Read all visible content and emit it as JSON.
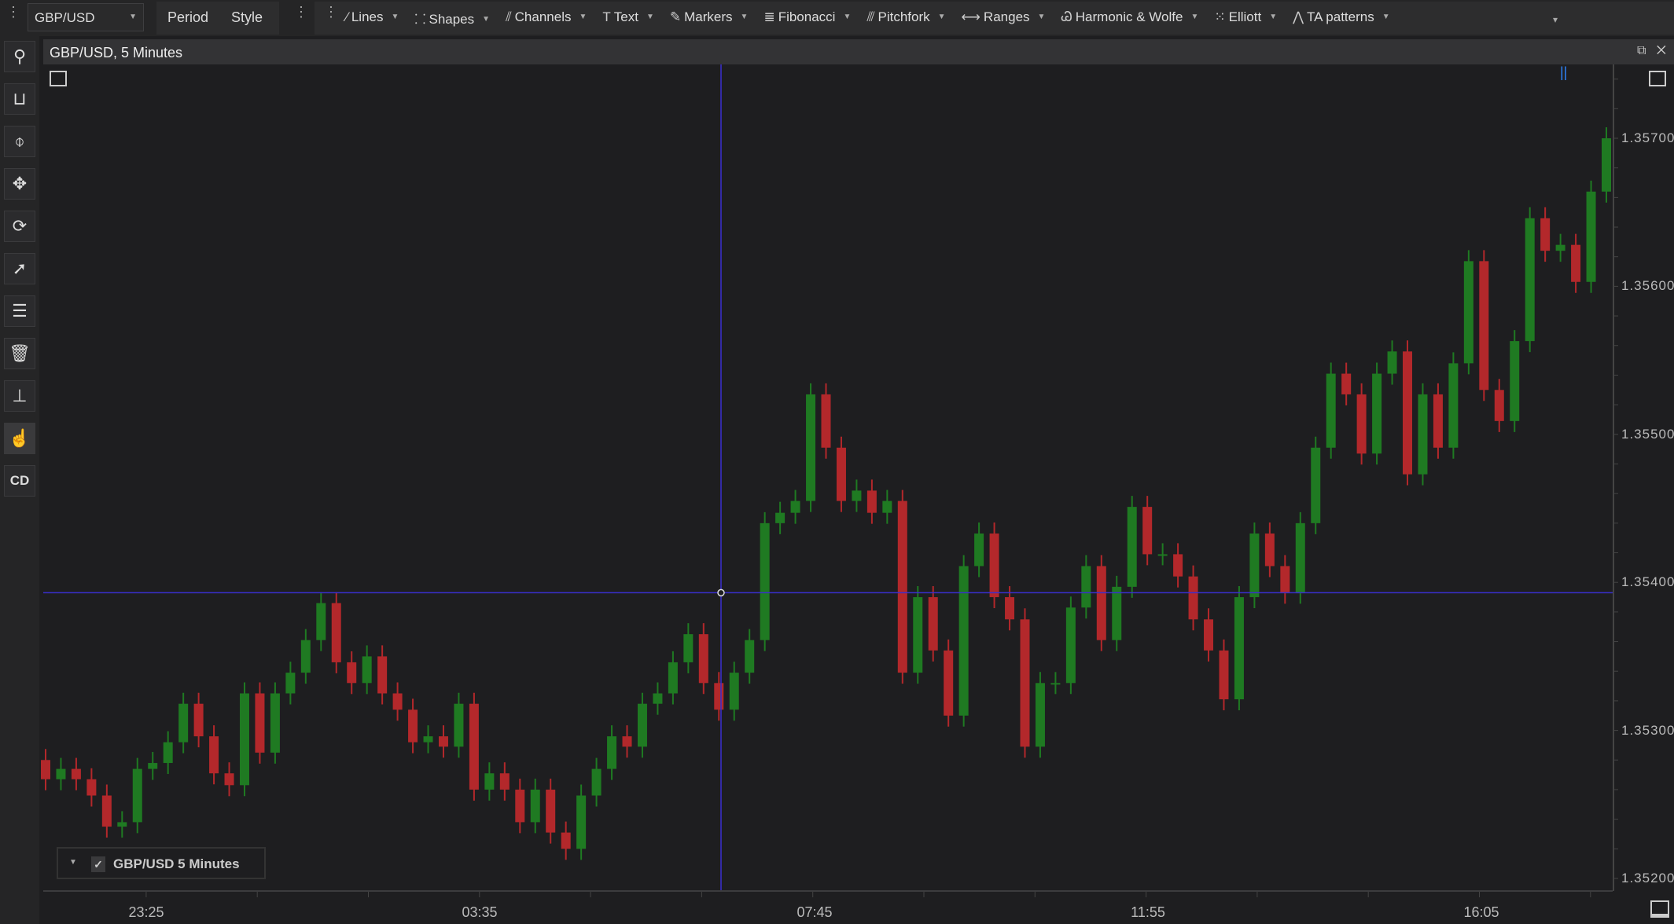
{
  "toolbar": {
    "symbol": "GBP/USD",
    "period_label": "Period",
    "style_label": "Style",
    "tools": [
      {
        "label": "Lines",
        "icon": "line-icon",
        "glyph": "⁄"
      },
      {
        "label": "Shapes",
        "icon": "shapes-icon",
        "glyph": "⸬"
      },
      {
        "label": "Channels",
        "icon": "channels-icon",
        "glyph": "⫽"
      },
      {
        "label": "Text",
        "icon": "text-icon",
        "glyph": "T"
      },
      {
        "label": "Markers",
        "icon": "marker-icon",
        "glyph": "✎"
      },
      {
        "label": "Fibonacci",
        "icon": "fibonacci-icon",
        "glyph": "≣"
      },
      {
        "label": "Pitchfork",
        "icon": "pitchfork-icon",
        "glyph": "⫻"
      },
      {
        "label": "Ranges",
        "icon": "ranges-icon",
        "glyph": "⟷"
      },
      {
        "label": "Harmonic & Wolfe",
        "icon": "harmonic-icon",
        "glyph": "Ꮚ"
      },
      {
        "label": "Elliott",
        "icon": "elliott-icon",
        "glyph": "⁙"
      },
      {
        "label": "TA patterns",
        "icon": "ta-patterns-icon",
        "glyph": "⋀"
      }
    ]
  },
  "sidebar": {
    "cd_label": "CD"
  },
  "chart_window": {
    "title": "GBP/USD, 5 Minutes",
    "legend_label": "GBP/USD 5 Minutes"
  },
  "colors": {
    "up": "#1f7a22",
    "down": "#b3282b",
    "crosshair": "#3a2fd0",
    "background": "#1e1e20"
  },
  "chart_data": {
    "type": "candlestick",
    "y_range": [
      1.3518,
      1.3575
    ],
    "y_ticks": [
      "1.35700",
      "1.35600",
      "1.35500",
      "1.35400",
      "1.35300",
      "1.35200"
    ],
    "x_tick_labels": [
      "23:25",
      "03:35",
      "07:45",
      "11:55",
      "16:05"
    ],
    "crosshair_price": 1.35393,
    "first_open": 1.3528,
    "close": [
      1.35267,
      1.35274,
      1.35267,
      1.35256,
      1.35235,
      1.35238,
      1.35274,
      1.35278,
      1.35292,
      1.35318,
      1.35296,
      1.35271,
      1.35263,
      1.35325,
      1.35285,
      1.35325,
      1.35339,
      1.35361,
      1.35386,
      1.35346,
      1.35332,
      1.3535,
      1.35325,
      1.35314,
      1.35292,
      1.35296,
      1.35289,
      1.35318,
      1.3526,
      1.35271,
      1.3526,
      1.35238,
      1.3526,
      1.35231,
      1.3522,
      1.35256,
      1.35274,
      1.35296,
      1.35289,
      1.35318,
      1.35325,
      1.35346,
      1.35365,
      1.35332,
      1.35314,
      1.35339,
      1.35361,
      1.3544,
      1.35447,
      1.35455,
      1.35527,
      1.35491,
      1.35455,
      1.35462,
      1.35447,
      1.35455,
      1.35339,
      1.3539,
      1.35354,
      1.3531,
      1.35411,
      1.35433,
      1.3539,
      1.35375,
      1.35289,
      1.35332,
      1.35332,
      1.35383,
      1.35411,
      1.35361,
      1.35397,
      1.35451,
      1.35419,
      1.35419,
      1.35404,
      1.35375,
      1.35354,
      1.35321,
      1.3539,
      1.35433,
      1.35411,
      1.35393,
      1.3544,
      1.35491,
      1.35541,
      1.35527,
      1.35487,
      1.35541,
      1.35556,
      1.35473,
      1.35527,
      1.35491,
      1.35548,
      1.35617,
      1.3553,
      1.35509,
      1.35563,
      1.35646,
      1.35624,
      1.35628,
      1.35603,
      1.35664,
      1.357
    ]
  }
}
